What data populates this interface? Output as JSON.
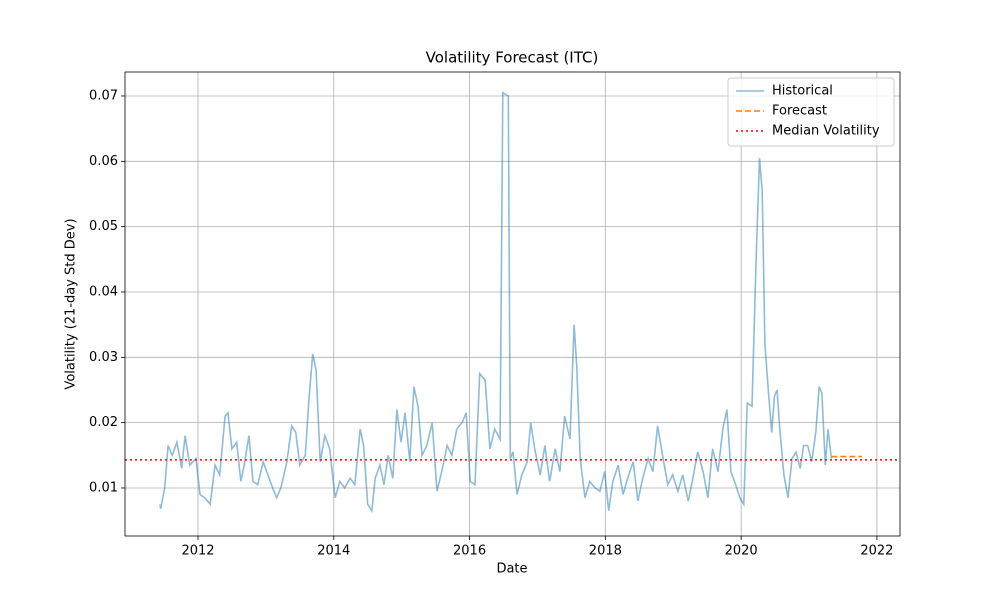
{
  "chart_data": {
    "type": "line",
    "title": "Volatility Forecast (ITC)",
    "xlabel": "Date",
    "ylabel": "Volatility (21-day Std Dev)",
    "xlim": [
      2010.925,
      2022.34
    ],
    "ylim": [
      0.00265,
      0.07367
    ],
    "xticks": [
      2012,
      2014,
      2016,
      2018,
      2020,
      2022
    ],
    "yticks": [
      0.01,
      0.02,
      0.03,
      0.04,
      0.05,
      0.06,
      0.07
    ],
    "grid": true,
    "legend": "upper right",
    "series": [
      {
        "name": "Historical",
        "color": "#1f77b4",
        "style": "solid",
        "x": [
          2011.44,
          2011.45,
          2011.51,
          2011.56,
          2011.62,
          2011.69,
          2011.76,
          2011.81,
          2011.88,
          2011.97,
          2012.03,
          2012.1,
          2012.18,
          2012.25,
          2012.32,
          2012.4,
          2012.44,
          2012.5,
          2012.57,
          2012.63,
          2012.68,
          2012.75,
          2012.81,
          2012.88,
          2012.96,
          2013.03,
          2013.1,
          2013.16,
          2013.22,
          2013.31,
          2013.38,
          2013.44,
          2013.5,
          2013.58,
          2013.63,
          2013.69,
          2013.74,
          2013.8,
          2013.87,
          2013.94,
          2014.02,
          2014.09,
          2014.16,
          2014.24,
          2014.31,
          2014.39,
          2014.44,
          2014.5,
          2014.56,
          2014.61,
          2014.68,
          2014.74,
          2014.8,
          2014.87,
          2014.93,
          2014.99,
          2015.05,
          2015.12,
          2015.18,
          2015.24,
          2015.3,
          2015.37,
          2015.45,
          2015.52,
          2015.59,
          2015.67,
          2015.74,
          2015.81,
          2015.89,
          2015.95,
          2016.01,
          2016.08,
          2016.15,
          2016.23,
          2016.3,
          2016.37,
          2016.45,
          2016.49,
          2016.57,
          2016.6,
          2016.64,
          2016.7,
          2016.77,
          2016.85,
          2016.9,
          2016.96,
          2017.04,
          2017.11,
          2017.18,
          2017.26,
          2017.33,
          2017.4,
          2017.48,
          2017.54,
          2017.58,
          2017.63,
          2017.7,
          2017.77,
          2017.85,
          2017.92,
          2017.99,
          2018.05,
          2018.11,
          2018.19,
          2018.26,
          2018.33,
          2018.41,
          2018.48,
          2018.55,
          2018.63,
          2018.7,
          2018.77,
          2018.85,
          2018.92,
          2018.99,
          2019.07,
          2019.14,
          2019.22,
          2019.29,
          2019.36,
          2019.44,
          2019.51,
          2019.58,
          2019.66,
          2019.73,
          2019.79,
          2019.85,
          2019.92,
          2019.98,
          2020.04,
          2020.09,
          2020.16,
          2020.22,
          2020.27,
          2020.31,
          2020.35,
          2020.4,
          2020.45,
          2020.49,
          2020.53,
          2020.57,
          2020.63,
          2020.69,
          2020.75,
          2020.81,
          2020.87,
          2020.92,
          2020.98,
          2021.04,
          2021.1,
          2021.15,
          2021.19,
          2021.24,
          2021.28,
          2021.33
        ],
        "values": [
          0.0075,
          0.0068,
          0.01,
          0.0165,
          0.015,
          0.017,
          0.013,
          0.018,
          0.0135,
          0.0145,
          0.009,
          0.0085,
          0.0075,
          0.0135,
          0.012,
          0.021,
          0.0215,
          0.016,
          0.017,
          0.011,
          0.0135,
          0.018,
          0.011,
          0.0105,
          0.014,
          0.012,
          0.01,
          0.0085,
          0.01,
          0.014,
          0.0195,
          0.0185,
          0.0135,
          0.015,
          0.023,
          0.0305,
          0.028,
          0.014,
          0.018,
          0.016,
          0.0085,
          0.011,
          0.01,
          0.0115,
          0.0105,
          0.019,
          0.0165,
          0.0075,
          0.0065,
          0.0115,
          0.0135,
          0.0105,
          0.015,
          0.0115,
          0.022,
          0.017,
          0.0215,
          0.014,
          0.0255,
          0.0225,
          0.015,
          0.0165,
          0.02,
          0.0095,
          0.0125,
          0.0165,
          0.015,
          0.019,
          0.02,
          0.0215,
          0.011,
          0.0105,
          0.0275,
          0.0265,
          0.016,
          0.019,
          0.0175,
          0.0705,
          0.07,
          0.0145,
          0.0155,
          0.009,
          0.012,
          0.014,
          0.02,
          0.016,
          0.012,
          0.0165,
          0.011,
          0.016,
          0.0125,
          0.021,
          0.0175,
          0.035,
          0.0285,
          0.0145,
          0.0085,
          0.011,
          0.01,
          0.0095,
          0.0125,
          0.0065,
          0.011,
          0.0135,
          0.009,
          0.0115,
          0.014,
          0.008,
          0.0115,
          0.0145,
          0.0125,
          0.0195,
          0.0145,
          0.0105,
          0.012,
          0.0095,
          0.012,
          0.008,
          0.0115,
          0.0155,
          0.0125,
          0.0085,
          0.016,
          0.0125,
          0.019,
          0.022,
          0.0125,
          0.0105,
          0.0085,
          0.0075,
          0.023,
          0.0225,
          0.045,
          0.0605,
          0.0555,
          0.032,
          0.025,
          0.0185,
          0.024,
          0.025,
          0.019,
          0.012,
          0.0085,
          0.0145,
          0.0155,
          0.013,
          0.0165,
          0.0165,
          0.014,
          0.0185,
          0.0255,
          0.0245,
          0.0135,
          0.019,
          0.0145
        ]
      },
      {
        "name": "Forecast",
        "color": "#ff7f0e",
        "style": "dashed",
        "x": [
          2021.33,
          2021.45,
          2021.56,
          2021.67,
          2021.78
        ],
        "values": [
          0.0148,
          0.0148,
          0.0148,
          0.0148,
          0.0148
        ]
      },
      {
        "name": "Median Volatility",
        "color": "#ff0000",
        "style": "dotted",
        "hline": 0.0143
      }
    ]
  }
}
